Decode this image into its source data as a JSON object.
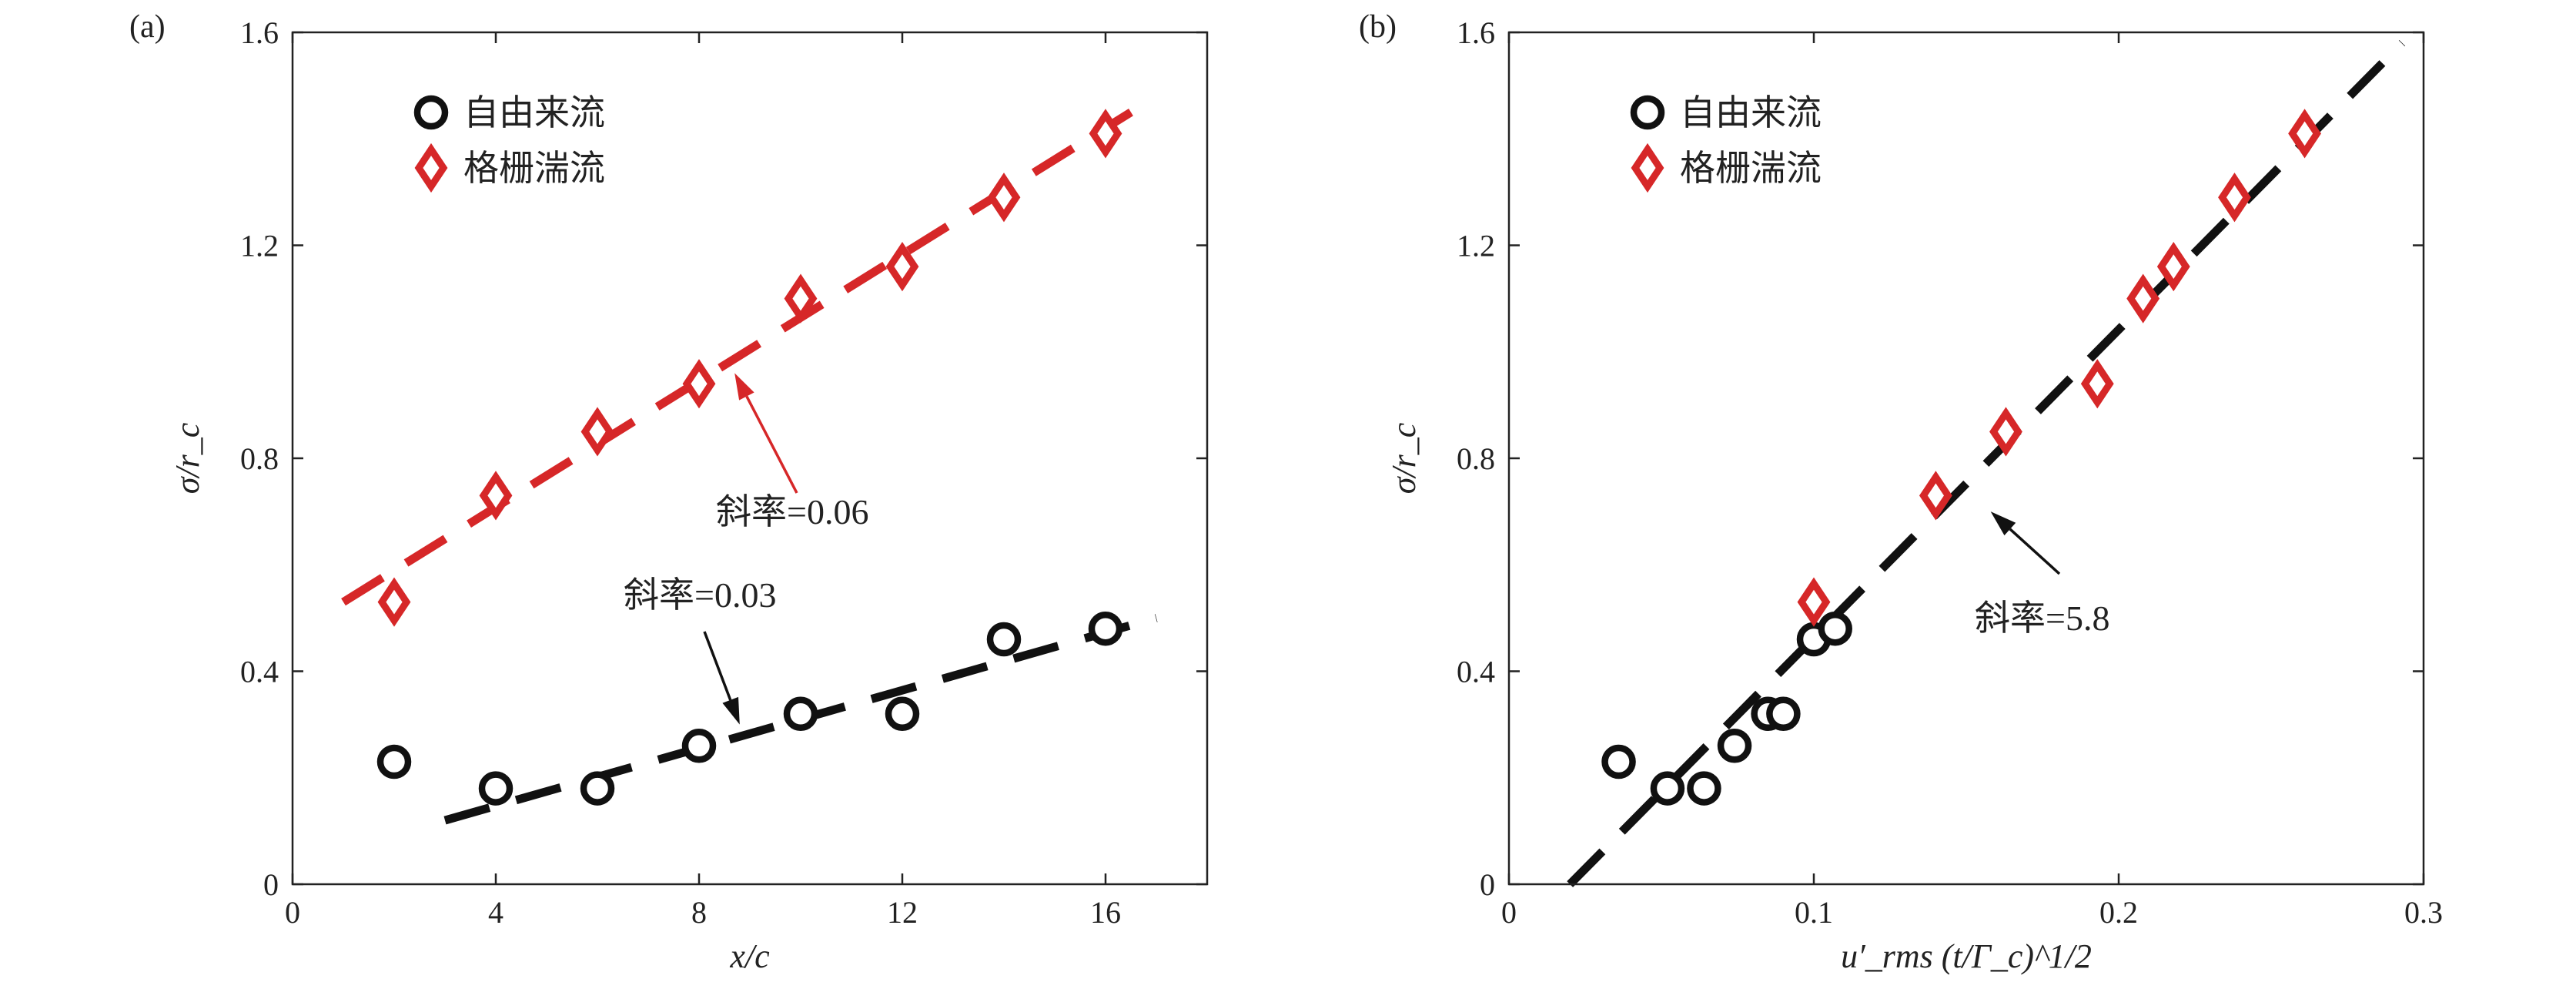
{
  "chart_data": [
    {
      "panel": "(a)",
      "type": "scatter",
      "xlabel": "x/c",
      "ylabel": "σ/r_c",
      "xlim": [
        0,
        18
      ],
      "ylim": [
        0,
        1.6
      ],
      "xticks": [
        "0",
        "4",
        "8",
        "12",
        "16"
      ],
      "yticks": [
        "0",
        "0.4",
        "0.8",
        "1.2",
        "1.6"
      ],
      "legend_position": "top-left",
      "series": [
        {
          "name": "自由来流",
          "marker": "circle",
          "color": "#111111",
          "x": [
            2,
            4,
            6,
            8,
            10,
            12,
            14,
            16
          ],
          "y": [
            0.23,
            0.18,
            0.18,
            0.26,
            0.32,
            0.32,
            0.46,
            0.48
          ],
          "fit": {
            "x": [
              3,
              17
            ],
            "y": [
              0.12,
              0.5
            ],
            "color": "#111111"
          }
        },
        {
          "name": "格栅湍流",
          "marker": "diamond",
          "color": "#d62728",
          "x": [
            2,
            4,
            6,
            8,
            10,
            12,
            14,
            16
          ],
          "y": [
            0.53,
            0.73,
            0.85,
            0.94,
            1.1,
            1.16,
            1.29,
            1.41
          ],
          "fit": {
            "x": [
              1,
              16.5
            ],
            "y": [
              0.53,
              1.45
            ],
            "color": "#d62728"
          }
        }
      ],
      "annotations": [
        {
          "text": "斜率=0.06",
          "color": "#d62728",
          "arrow_to": [
            8.7,
            0.96
          ]
        },
        {
          "text": "斜率=0.03",
          "color": "#111111",
          "arrow_to": [
            8.8,
            0.3
          ]
        }
      ]
    },
    {
      "panel": "(b)",
      "type": "scatter",
      "xlabel": "u′_rms (t/Γ_c)^1/2",
      "ylabel": "σ/r_c",
      "xlim": [
        0,
        0.3
      ],
      "ylim": [
        0,
        1.6
      ],
      "xticks": [
        "0",
        "0.1",
        "0.2",
        "0.3"
      ],
      "yticks": [
        "0",
        "0.4",
        "0.8",
        "1.2",
        "1.6"
      ],
      "legend_position": "top-left",
      "series": [
        {
          "name": "自由来流",
          "marker": "circle",
          "color": "#111111",
          "x": [
            0.036,
            0.052,
            0.064,
            0.074,
            0.085,
            0.09,
            0.1,
            0.107
          ],
          "y": [
            0.23,
            0.18,
            0.18,
            0.26,
            0.32,
            0.32,
            0.46,
            0.48
          ]
        },
        {
          "name": "格栅湍流",
          "marker": "diamond",
          "color": "#d62728",
          "x": [
            0.1,
            0.14,
            0.163,
            0.193,
            0.208,
            0.218,
            0.238,
            0.261
          ],
          "y": [
            0.53,
            0.73,
            0.85,
            0.94,
            1.1,
            1.16,
            1.29,
            1.41
          ]
        }
      ],
      "fit": {
        "x": [
          0.02,
          0.293
        ],
        "y": [
          0.0,
          1.58
        ],
        "color": "#111111"
      },
      "annotations": [
        {
          "text": "斜率=5.8",
          "color": "#111111",
          "arrow_to": [
            0.158,
            0.7
          ]
        }
      ]
    }
  ]
}
